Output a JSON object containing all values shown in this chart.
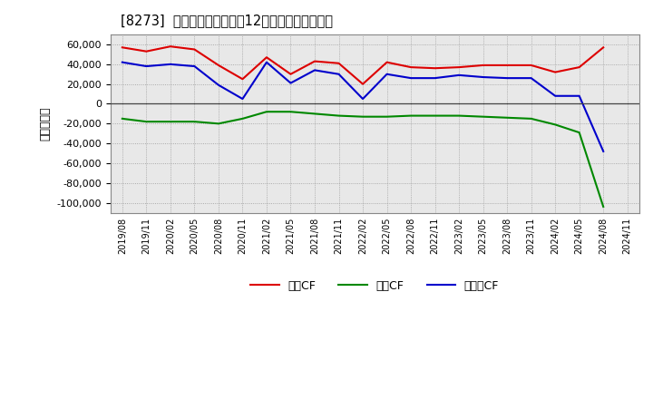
{
  "title": "[8273]  キャッシュフローの12か月移動合計の推移",
  "ylabel": "（百万円）",
  "legend_labels": [
    "営業CF",
    "投資CF",
    "フリーCF"
  ],
  "legend_colors": [
    "#dd0000",
    "#008800",
    "#0000cc"
  ],
  "ylim": [
    -110000,
    70000
  ],
  "yticks": [
    -100000,
    -80000,
    -60000,
    -40000,
    -20000,
    0,
    20000,
    40000,
    60000
  ],
  "x_labels": [
    "2019/08",
    "2019/11",
    "2020/02",
    "2020/05",
    "2020/08",
    "2020/11",
    "2021/02",
    "2021/05",
    "2021/08",
    "2021/11",
    "2022/02",
    "2022/05",
    "2022/08",
    "2022/11",
    "2023/02",
    "2023/05",
    "2023/08",
    "2023/11",
    "2024/02",
    "2024/05",
    "2024/08",
    "2024/11"
  ],
  "operating_cf": [
    57000,
    53000,
    58000,
    55000,
    39000,
    25000,
    47000,
    30000,
    43000,
    41000,
    20000,
    42000,
    37000,
    36000,
    37000,
    39000,
    39000,
    39000,
    32000,
    37000,
    57000,
    null
  ],
  "investing_cf": [
    -15000,
    -18000,
    -18000,
    -18000,
    -20000,
    -15000,
    -8000,
    -8000,
    -10000,
    -12000,
    -13000,
    -13000,
    -12000,
    -12000,
    -12000,
    -13000,
    -14000,
    -15000,
    -21000,
    -29000,
    -104000,
    null
  ],
  "free_cf": [
    42000,
    38000,
    40000,
    38000,
    19000,
    5000,
    42000,
    21000,
    34000,
    30000,
    5000,
    30000,
    26000,
    26000,
    29000,
    27000,
    26000,
    26000,
    8000,
    8000,
    -48000,
    null
  ],
  "bg_color": "#f0f0f0",
  "plot_bg": "#e8e8e8"
}
